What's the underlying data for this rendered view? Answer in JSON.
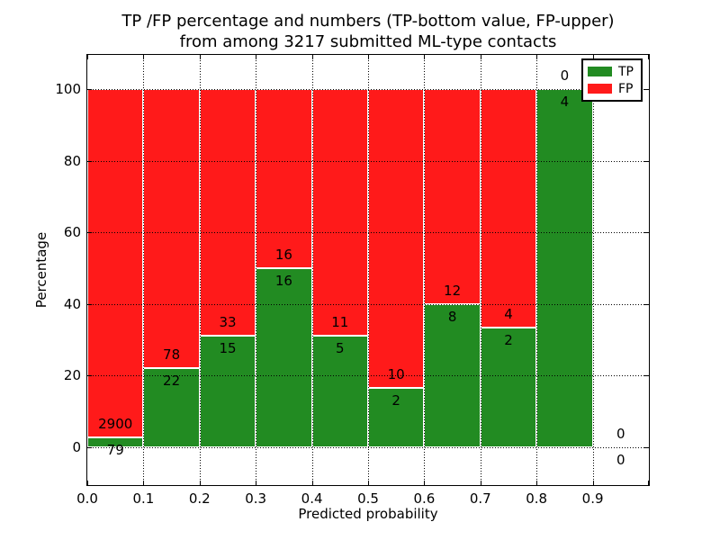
{
  "figure": {
    "title_line1": "TP /FP percentage and numbers (TP-bottom value, FP-upper)",
    "title_line2": "from among 3217 submitted ML-type contacts"
  },
  "chart_data": {
    "type": "bar",
    "stacked": true,
    "normalized": "percent",
    "title": "TP /FP percentage and numbers (TP-bottom value, FP-upper)\nfrom among 3217 submitted ML-type contacts",
    "xlabel": "Predicted probability",
    "ylabel": "Percentage",
    "x_tick_labels": [
      "0.0",
      "0.1",
      "0.2",
      "0.3",
      "0.4",
      "0.5",
      "0.6",
      "0.7",
      "0.8",
      "0.9"
    ],
    "y_ticks": [
      0,
      20,
      40,
      60,
      80,
      100
    ],
    "y_tick_labels": [
      "0",
      "20",
      "40",
      "60",
      "80",
      "100"
    ],
    "xlim": [
      0.0,
      1.0
    ],
    "ylim": [
      0,
      100
    ],
    "grid": true,
    "grid_style": "dotted",
    "legend_position": "upper right",
    "legend": [
      {
        "label": "TP",
        "color": "#228b22"
      },
      {
        "label": "FP",
        "color": "#ff1a1a"
      }
    ],
    "annotation_note_visible_values_only": "TP count shown below segment boundary, FP count above",
    "bins": [
      {
        "x0": 0.0,
        "x1": 0.1,
        "tp": 79,
        "fp": 2900
      },
      {
        "x0": 0.1,
        "x1": 0.2,
        "tp": 22,
        "fp": 78
      },
      {
        "x0": 0.2,
        "x1": 0.3,
        "tp": 15,
        "fp": 33
      },
      {
        "x0": 0.3,
        "x1": 0.4,
        "tp": 16,
        "fp": 16
      },
      {
        "x0": 0.4,
        "x1": 0.5,
        "tp": 5,
        "fp": 11
      },
      {
        "x0": 0.5,
        "x1": 0.6,
        "tp": 2,
        "fp": 10
      },
      {
        "x0": 0.6,
        "x1": 0.7,
        "tp": 8,
        "fp": 12
      },
      {
        "x0": 0.7,
        "x1": 0.8,
        "tp": 2,
        "fp": 4
      },
      {
        "x0": 0.8,
        "x1": 0.9,
        "tp": 4,
        "fp": 0
      },
      {
        "x0": 0.9,
        "x1": 1.0,
        "tp": 0,
        "fp": 0
      }
    ]
  }
}
